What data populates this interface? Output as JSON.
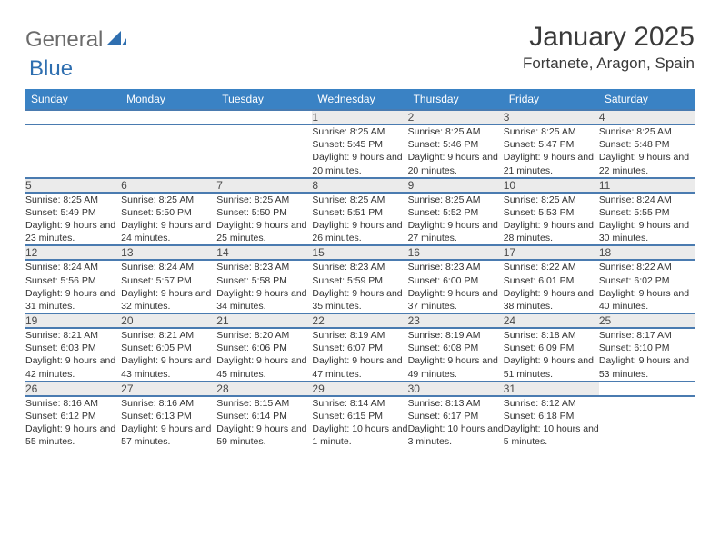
{
  "brand": {
    "part1": "General",
    "part2": "Blue"
  },
  "title": "January 2025",
  "location": "Fortanete, Aragon, Spain",
  "dayHeaders": [
    "Sunday",
    "Monday",
    "Tuesday",
    "Wednesday",
    "Thursday",
    "Friday",
    "Saturday"
  ],
  "colors": {
    "header_bg": "#3a82c4",
    "header_text": "#ffffff",
    "daynum_bg": "#ebebeb",
    "row_border": "#4a7bb0",
    "brand_gray": "#6b6b6b",
    "brand_blue": "#2f6fb0",
    "text": "#333333"
  },
  "weeks": [
    [
      null,
      null,
      null,
      {
        "d": "1",
        "sr": "8:25 AM",
        "ss": "5:45 PM",
        "dl": "9 hours and 20 minutes."
      },
      {
        "d": "2",
        "sr": "8:25 AM",
        "ss": "5:46 PM",
        "dl": "9 hours and 20 minutes."
      },
      {
        "d": "3",
        "sr": "8:25 AM",
        "ss": "5:47 PM",
        "dl": "9 hours and 21 minutes."
      },
      {
        "d": "4",
        "sr": "8:25 AM",
        "ss": "5:48 PM",
        "dl": "9 hours and 22 minutes."
      }
    ],
    [
      {
        "d": "5",
        "sr": "8:25 AM",
        "ss": "5:49 PM",
        "dl": "9 hours and 23 minutes."
      },
      {
        "d": "6",
        "sr": "8:25 AM",
        "ss": "5:50 PM",
        "dl": "9 hours and 24 minutes."
      },
      {
        "d": "7",
        "sr": "8:25 AM",
        "ss": "5:50 PM",
        "dl": "9 hours and 25 minutes."
      },
      {
        "d": "8",
        "sr": "8:25 AM",
        "ss": "5:51 PM",
        "dl": "9 hours and 26 minutes."
      },
      {
        "d": "9",
        "sr": "8:25 AM",
        "ss": "5:52 PM",
        "dl": "9 hours and 27 minutes."
      },
      {
        "d": "10",
        "sr": "8:25 AM",
        "ss": "5:53 PM",
        "dl": "9 hours and 28 minutes."
      },
      {
        "d": "11",
        "sr": "8:24 AM",
        "ss": "5:55 PM",
        "dl": "9 hours and 30 minutes."
      }
    ],
    [
      {
        "d": "12",
        "sr": "8:24 AM",
        "ss": "5:56 PM",
        "dl": "9 hours and 31 minutes."
      },
      {
        "d": "13",
        "sr": "8:24 AM",
        "ss": "5:57 PM",
        "dl": "9 hours and 32 minutes."
      },
      {
        "d": "14",
        "sr": "8:23 AM",
        "ss": "5:58 PM",
        "dl": "9 hours and 34 minutes."
      },
      {
        "d": "15",
        "sr": "8:23 AM",
        "ss": "5:59 PM",
        "dl": "9 hours and 35 minutes."
      },
      {
        "d": "16",
        "sr": "8:23 AM",
        "ss": "6:00 PM",
        "dl": "9 hours and 37 minutes."
      },
      {
        "d": "17",
        "sr": "8:22 AM",
        "ss": "6:01 PM",
        "dl": "9 hours and 38 minutes."
      },
      {
        "d": "18",
        "sr": "8:22 AM",
        "ss": "6:02 PM",
        "dl": "9 hours and 40 minutes."
      }
    ],
    [
      {
        "d": "19",
        "sr": "8:21 AM",
        "ss": "6:03 PM",
        "dl": "9 hours and 42 minutes."
      },
      {
        "d": "20",
        "sr": "8:21 AM",
        "ss": "6:05 PM",
        "dl": "9 hours and 43 minutes."
      },
      {
        "d": "21",
        "sr": "8:20 AM",
        "ss": "6:06 PM",
        "dl": "9 hours and 45 minutes."
      },
      {
        "d": "22",
        "sr": "8:19 AM",
        "ss": "6:07 PM",
        "dl": "9 hours and 47 minutes."
      },
      {
        "d": "23",
        "sr": "8:19 AM",
        "ss": "6:08 PM",
        "dl": "9 hours and 49 minutes."
      },
      {
        "d": "24",
        "sr": "8:18 AM",
        "ss": "6:09 PM",
        "dl": "9 hours and 51 minutes."
      },
      {
        "d": "25",
        "sr": "8:17 AM",
        "ss": "6:10 PM",
        "dl": "9 hours and 53 minutes."
      }
    ],
    [
      {
        "d": "26",
        "sr": "8:16 AM",
        "ss": "6:12 PM",
        "dl": "9 hours and 55 minutes."
      },
      {
        "d": "27",
        "sr": "8:16 AM",
        "ss": "6:13 PM",
        "dl": "9 hours and 57 minutes."
      },
      {
        "d": "28",
        "sr": "8:15 AM",
        "ss": "6:14 PM",
        "dl": "9 hours and 59 minutes."
      },
      {
        "d": "29",
        "sr": "8:14 AM",
        "ss": "6:15 PM",
        "dl": "10 hours and 1 minute."
      },
      {
        "d": "30",
        "sr": "8:13 AM",
        "ss": "6:17 PM",
        "dl": "10 hours and 3 minutes."
      },
      {
        "d": "31",
        "sr": "8:12 AM",
        "ss": "6:18 PM",
        "dl": "10 hours and 5 minutes."
      },
      null
    ]
  ],
  "labels": {
    "sunrise": "Sunrise:",
    "sunset": "Sunset:",
    "daylight": "Daylight:"
  }
}
